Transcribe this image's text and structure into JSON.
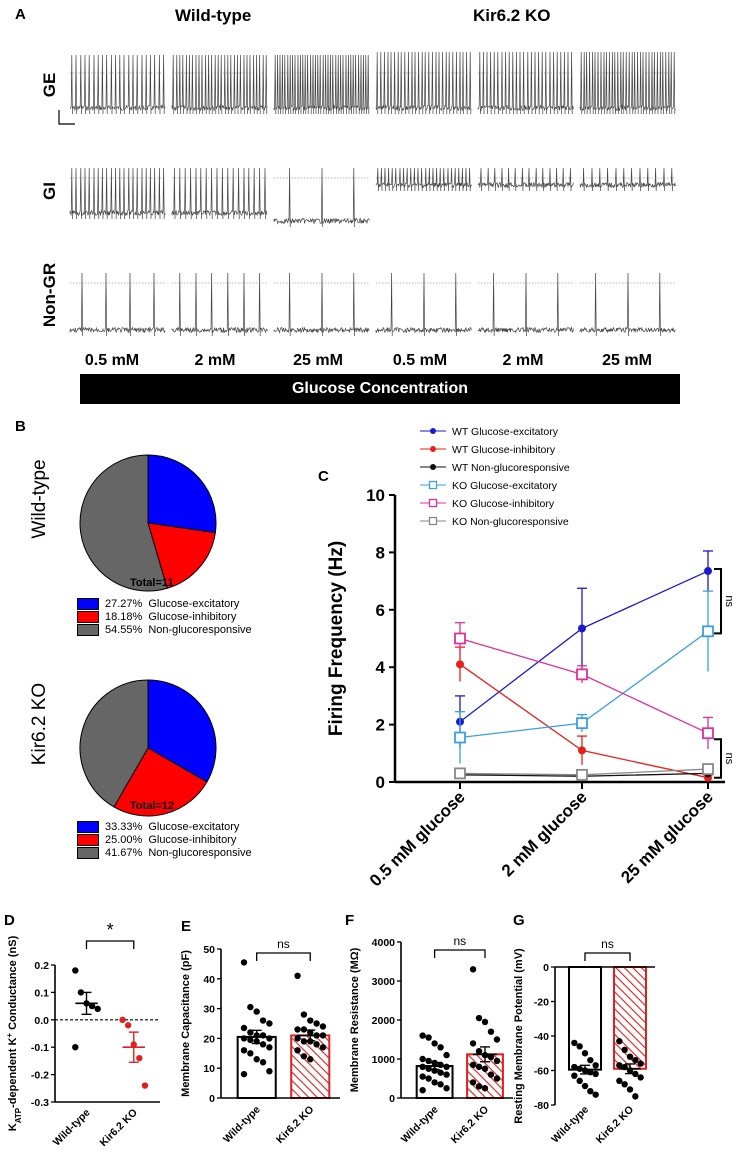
{
  "panel_labels": {
    "a": "A",
    "b": "B",
    "c": "C",
    "d": "D",
    "e": "E",
    "f": "F",
    "g": "G"
  },
  "panel_a": {
    "headers": [
      "Wild-type",
      "Kir6.2 KO"
    ],
    "rows": [
      "GE",
      "GI",
      "Non-GR"
    ],
    "concentrations": [
      "0.5 mM",
      "2 mM",
      "25 mM",
      "0.5 mM",
      "2 mM",
      "25 mM"
    ],
    "bar_label": "Glucose Concentration"
  },
  "panel_b": {
    "colors": {
      "excitatory": "#0000ff",
      "inhibitory": "#ff0000",
      "non": "#666666"
    },
    "pies": [
      {
        "genotype": "Wild-type",
        "total": "Total=11",
        "values": [
          27.27,
          18.18,
          54.55
        ],
        "legend": [
          {
            "pct": "27.27%",
            "label": "Glucose-excitatory"
          },
          {
            "pct": "18.18%",
            "label": "Glucose-inhibitory"
          },
          {
            "pct": "54.55%",
            "label": "Non-glucoresponsive"
          }
        ]
      },
      {
        "genotype": "Kir6.2 KO",
        "total": "Total=12",
        "values": [
          33.33,
          25.0,
          41.67
        ],
        "legend": [
          {
            "pct": "33.33%",
            "label": "Glucose-excitatory"
          },
          {
            "pct": "25.00%",
            "label": "Glucose-inhibitory"
          },
          {
            "pct": "41.67%",
            "label": "Non-glucoresponsive"
          }
        ]
      }
    ]
  },
  "chart_data": [
    {
      "panel": "C",
      "type": "line",
      "ylabel": "Firing Frequency (Hz)",
      "ylim": [
        0,
        10
      ],
      "yticks": [
        0,
        2,
        4,
        6,
        8,
        10
      ],
      "categories": [
        "0.5 mM glucose",
        "2 mM glucose",
        "25 mM glucose"
      ],
      "annotations": [
        "ns",
        "ns"
      ],
      "series": [
        {
          "name": "WT Glucose-excitatory",
          "color": "#1a1acc",
          "marker": "circle",
          "values": [
            2.1,
            5.35,
            7.35
          ],
          "err": [
            0.9,
            1.4,
            0.7
          ]
        },
        {
          "name": "WT Glucose-inhibitory",
          "color": "#e8201a",
          "marker": "circle",
          "values": [
            4.1,
            1.1,
            0.15
          ],
          "err": [
            0.6,
            0.5,
            0.1
          ]
        },
        {
          "name": "WT Non-glucoresponsive",
          "color": "#111111",
          "marker": "circle",
          "values": [
            0.25,
            0.2,
            0.3
          ],
          "err": [
            0.1,
            0.1,
            0.1
          ]
        },
        {
          "name": "KO Glucose-excitatory",
          "color": "#3aa0e0",
          "marker": "square",
          "values": [
            1.55,
            2.05,
            5.25
          ],
          "err": [
            0.9,
            0.3,
            1.4
          ]
        },
        {
          "name": "KO Glucose-inhibitory",
          "color": "#e0309a",
          "marker": "square",
          "values": [
            5.0,
            3.75,
            1.7
          ],
          "err": [
            0.55,
            0.3,
            0.55
          ]
        },
        {
          "name": "KO Non-glucoresponsive",
          "color": "#888888",
          "marker": "square",
          "values": [
            0.3,
            0.25,
            0.45
          ],
          "err": [
            0.1,
            0.1,
            0.1
          ]
        }
      ]
    },
    {
      "panel": "D",
      "type": "bar",
      "ylabel": "KATP-dependent K+ Conductance (nS)",
      "ylim": [
        -0.3,
        0.2
      ],
      "yticks": [
        -0.3,
        -0.2,
        -0.1,
        0.0,
        0.1,
        0.2
      ],
      "categories": [
        "Wild-type",
        "Kir6.2 KO"
      ],
      "means": [
        0.06,
        -0.1
      ],
      "sems": [
        0.04,
        0.055
      ],
      "points": [
        [
          0.18,
          0.1,
          0.06,
          0.05,
          0.04,
          -0.1
        ],
        [
          0.0,
          -0.02,
          -0.09,
          -0.14,
          -0.24
        ]
      ],
      "significance": "*"
    },
    {
      "panel": "E",
      "type": "bar",
      "ylabel": "Membrane Capacitance (pF)",
      "ylim": [
        0,
        50
      ],
      "yticks": [
        0,
        10,
        20,
        30,
        40,
        50
      ],
      "categories": [
        "Wild-type",
        "Kir6.2 KO"
      ],
      "means": [
        20.5,
        21
      ],
      "sems": [
        2.2,
        1.8
      ],
      "points": [
        [
          45.5,
          30.5,
          29,
          26,
          25,
          23.5,
          22,
          21,
          21,
          20,
          20,
          19.5,
          19,
          18,
          17,
          16,
          15,
          13,
          12,
          9,
          8
        ],
        [
          41,
          28,
          26,
          25,
          24,
          23,
          23,
          22,
          21,
          21,
          20,
          19,
          19,
          18,
          17,
          16,
          14,
          13
        ]
      ],
      "significance": "ns"
    },
    {
      "panel": "F",
      "type": "bar",
      "ylabel": "Membrane Resistance (MΩ)",
      "ylim": [
        0,
        4000
      ],
      "yticks": [
        0,
        1000,
        2000,
        3000,
        4000
      ],
      "categories": [
        "Wild-type",
        "Kir6.2 KO"
      ],
      "means": [
        820,
        1120
      ],
      "sems": [
        90,
        190
      ],
      "points": [
        [
          1600,
          1550,
          1400,
          1300,
          1100,
          1000,
          950,
          900,
          850,
          800,
          800,
          750,
          700,
          650,
          600,
          550,
          500,
          400,
          350,
          250,
          200
        ],
        [
          3300,
          2050,
          1950,
          1700,
          1500,
          1400,
          1200,
          1100,
          1050,
          950,
          850,
          800,
          750,
          600,
          500,
          400,
          300,
          250
        ]
      ],
      "significance": "ns"
    },
    {
      "panel": "G",
      "type": "bar",
      "ylabel": "Resting Membrane Potential (mV)",
      "ylim": [
        -80,
        0
      ],
      "yticks": [
        -80,
        -60,
        -40,
        -20,
        0
      ],
      "categories": [
        "Wild-type",
        "Kir6.2 KO"
      ],
      "means": [
        -59.5,
        -59
      ],
      "sems": [
        2.5,
        2.8
      ],
      "points": [
        [
          -44,
          -46,
          -50,
          -54,
          -57,
          -58,
          -59,
          -60,
          -61,
          -62,
          -63,
          -66,
          -69,
          -72,
          -74
        ],
        [
          -43,
          -48,
          -52,
          -54,
          -56,
          -57,
          -58,
          -60,
          -62,
          -64,
          -66,
          -68,
          -71,
          -75
        ]
      ],
      "significance": "ns"
    }
  ]
}
